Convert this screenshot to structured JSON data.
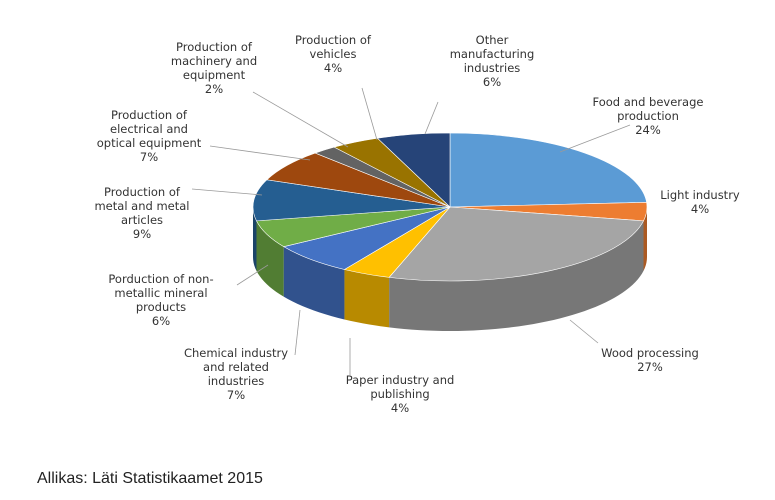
{
  "chart_data": {
    "type": "pie",
    "title": "",
    "style": "3d",
    "slices": [
      {
        "label": "Food and beverage production",
        "value": 24,
        "display": "24%",
        "color": "#5b9bd5"
      },
      {
        "label": "Light industry",
        "value": 4,
        "display": "4%",
        "color": "#ed7d31"
      },
      {
        "label": "Wood processing",
        "value": 27,
        "display": "27%",
        "color": "#a5a5a5"
      },
      {
        "label": "Paper industry and publishing",
        "value": 4,
        "display": "4%",
        "color": "#ffc000"
      },
      {
        "label": "Chemical industry and related industries",
        "value": 7,
        "display": "7%",
        "color": "#4472c4"
      },
      {
        "label": "Porduction of non-metallic mineral products",
        "value": 6,
        "display": "6%",
        "color": "#70ad47"
      },
      {
        "label": "Production of metal and metal articles",
        "value": 9,
        "display": "9%",
        "color": "#255e91"
      },
      {
        "label": "Production of electrical and optical equipment",
        "value": 7,
        "display": "7%",
        "color": "#9e480e"
      },
      {
        "label": "Production of machinery and equipment",
        "value": 2,
        "display": "2%",
        "color": "#636363"
      },
      {
        "label": "Production of vehicles",
        "value": 4,
        "display": "4%",
        "color": "#997300"
      },
      {
        "label": "Other manufacturing industries",
        "value": 6,
        "display": "6%",
        "color": "#264478"
      }
    ]
  },
  "labels": [
    {
      "lines": [
        "Food and beverage",
        "production"
      ],
      "pct": "24%"
    },
    {
      "lines": [
        "Light industry"
      ],
      "pct": "4%"
    },
    {
      "lines": [
        "Wood processing"
      ],
      "pct": "27%"
    },
    {
      "lines": [
        "Paper industry and",
        "publishing"
      ],
      "pct": "4%"
    },
    {
      "lines": [
        "Chemical industry",
        "and related",
        "industries"
      ],
      "pct": "7%"
    },
    {
      "lines": [
        "Porduction of non-",
        "metallic mineral",
        "products"
      ],
      "pct": "6%"
    },
    {
      "lines": [
        "Production of",
        "metal and metal",
        "articles"
      ],
      "pct": "9%"
    },
    {
      "lines": [
        "Production of",
        "electrical and",
        "optical equipment"
      ],
      "pct": "7%"
    },
    {
      "lines": [
        "Production of",
        "machinery and",
        "equipment"
      ],
      "pct": "2%"
    },
    {
      "lines": [
        "Production of",
        "vehicles"
      ],
      "pct": "4%"
    },
    {
      "lines": [
        "Other",
        "manufacturing",
        "industries"
      ],
      "pct": "6%"
    }
  ],
  "source": "Allikas: Läti Statistikaamet 2015"
}
